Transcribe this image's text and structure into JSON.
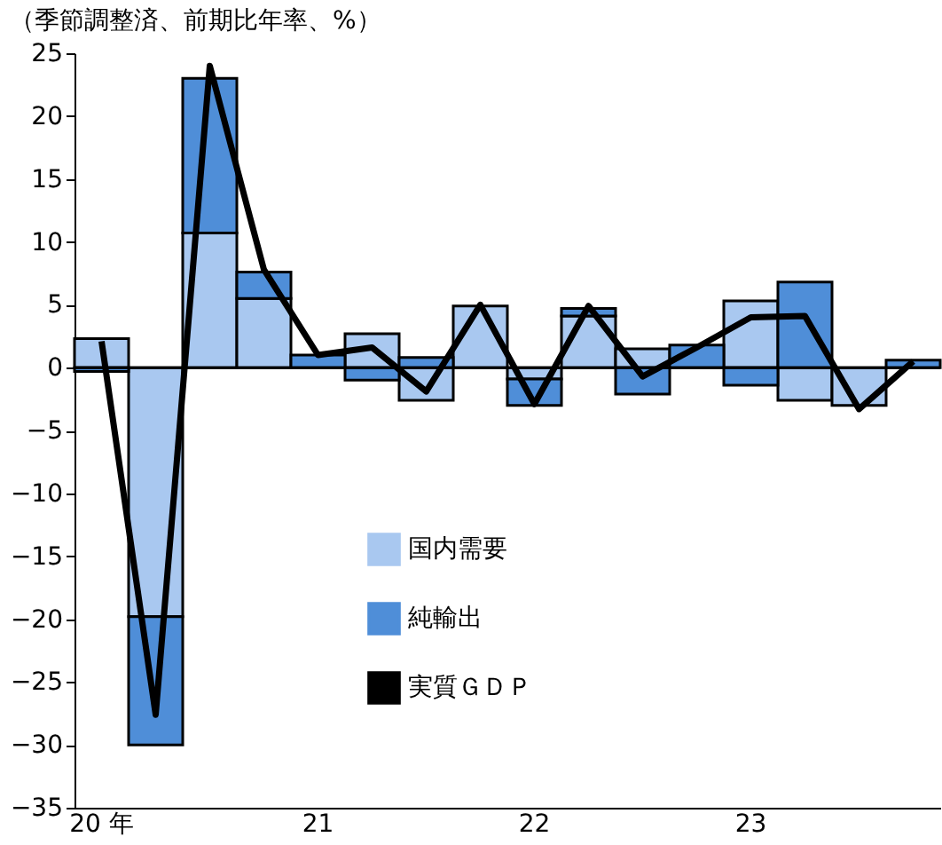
{
  "chart_data": {
    "type": "bar",
    "title": "（季節調整済、前期比年率、%）",
    "categories": [
      "20 年",
      null,
      null,
      null,
      "21",
      null,
      null,
      null,
      "22",
      null,
      null,
      null,
      "23",
      null,
      null,
      null
    ],
    "stacked": true,
    "series": [
      {
        "name": "国内需要",
        "color": "#a9c8f0",
        "values": [
          2.3,
          -19.8,
          10.7,
          5.5,
          null,
          2.7,
          -2.6,
          4.9,
          -0.9,
          4.1,
          1.5,
          null,
          5.3,
          -2.6,
          -3.0,
          null
        ]
      },
      {
        "name": "純輸出",
        "color": "#4f8ed8",
        "values": [
          -0.3,
          -10.2,
          12.3,
          2.1,
          1.0,
          -1.0,
          0.8,
          null,
          -2.1,
          0.6,
          -2.1,
          1.8,
          -1.4,
          6.8,
          null,
          0.6
        ]
      },
      {
        "name": "実質ＧＤＰ",
        "color": "#000000",
        "type": "line",
        "values": [
          2.1,
          -27.6,
          24.0,
          7.8,
          1.0,
          1.6,
          -1.9,
          5.0,
          -2.9,
          4.9,
          -0.7,
          1.6,
          4.0,
          4.1,
          -3.3,
          0.5
        ]
      }
    ],
    "ylim": [
      -35,
      25
    ],
    "yticks": [
      -35,
      -30,
      -25,
      -20,
      -15,
      -10,
      -5,
      0,
      5,
      10,
      15,
      20,
      25
    ],
    "ref_lines": [
      {
        "axis": "y",
        "value": 0,
        "color": "#000000"
      }
    ],
    "grid": false,
    "legend": "bottom",
    "marker": "none",
    "line_style": "solid"
  }
}
